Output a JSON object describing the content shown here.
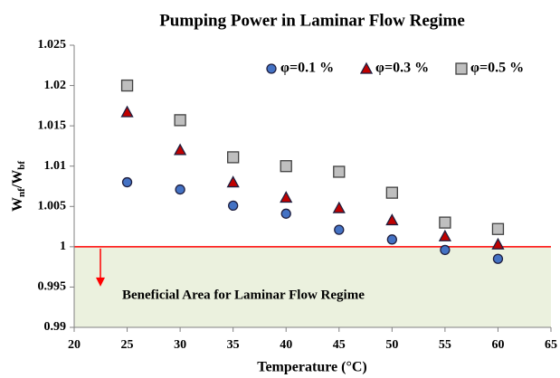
{
  "chart_data": {
    "type": "scatter",
    "title": "Pumping Power in Laminar Flow Regime",
    "xlabel": "Temperature (°C)",
    "ylabel": [
      "W",
      "nf",
      "/W",
      "bf"
    ],
    "x": [
      25,
      30,
      35,
      40,
      45,
      50,
      55,
      60
    ],
    "series": [
      {
        "name": "φ=0.1 %",
        "color": "#4472c4",
        "marker": "circle",
        "values": [
          1.008,
          1.0071,
          1.0051,
          1.0041,
          1.0021,
          1.0009,
          0.9996,
          0.9985
        ]
      },
      {
        "name": "φ=0.3 %",
        "color": "#c00000",
        "marker": "triangle",
        "values": [
          1.0167,
          1.012,
          1.008,
          1.0061,
          1.0048,
          1.0033,
          1.0013,
          1.0003
        ]
      },
      {
        "name": "φ=0.5 %",
        "color": "#bfbfbf",
        "marker": "square",
        "values": [
          1.02,
          1.0157,
          1.0111,
          1.01,
          1.0093,
          1.0067,
          1.003,
          1.0022
        ]
      }
    ],
    "xlim": [
      20,
      65
    ],
    "xticks": [
      20,
      25,
      30,
      35,
      40,
      45,
      50,
      55,
      60,
      65
    ],
    "ylim": [
      0.99,
      1.025
    ],
    "yticks": [
      0.99,
      0.995,
      1,
      1.005,
      1.01,
      1.015,
      1.02,
      1.025
    ],
    "reference_line": 1,
    "reference_color": "#ff0000",
    "area_color": "#ebf1de",
    "annotation": "Beneficial Area for Laminar Flow Regime",
    "legend": "top-right",
    "grid": false
  }
}
